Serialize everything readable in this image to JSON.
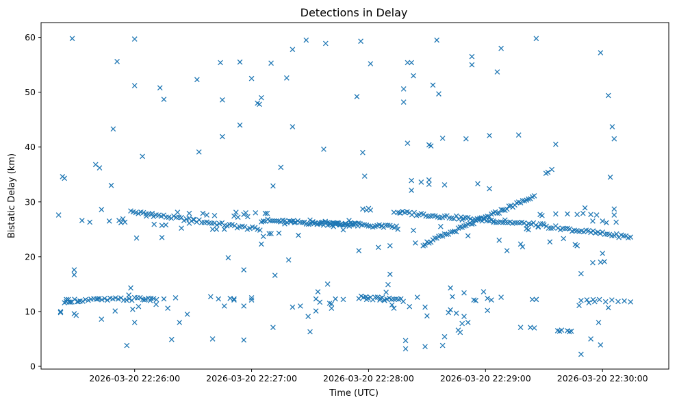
{
  "chart_data": {
    "type": "scatter",
    "title": "Detections in Delay",
    "xlabel": "Time (UTC)",
    "ylabel": "Bistatic Delay (km)",
    "marker": "x",
    "color": "#1f77b4",
    "grid": false,
    "xlim_seconds_from_start": [
      -48,
      274
    ],
    "ylim": [
      -0.5,
      62.7
    ],
    "x_tick_seconds": [
      0,
      60,
      120,
      180,
      240
    ],
    "x_tick_labels": [
      "2026-03-20 22:26:00",
      "2026-03-20 22:27:00",
      "2026-03-20 22:28:00",
      "2026-03-20 22:29:00",
      "2026-03-20 22:30:00"
    ],
    "y_ticks": [
      0,
      10,
      20,
      30,
      40,
      50,
      60
    ],
    "y_tick_labels": [
      "0",
      "10",
      "20",
      "30",
      "40",
      "50",
      "60"
    ],
    "x_start_time": "2026-03-20 22:26:00",
    "series": [
      {
        "name": "detections",
        "tracks": [
          {
            "t0": -2,
            "t1": 65,
            "y0": 28.2,
            "y1": 24.9,
            "step": 1.3,
            "jitter": 0.3
          },
          {
            "t0": 65,
            "t1": 135,
            "y0": 26.6,
            "y1": 25.4,
            "step": 1.1,
            "jitter": 0.3
          },
          {
            "t0": 135,
            "t1": 210,
            "y0": 28.1,
            "y1": 25.7,
            "step": 1.2,
            "jitter": 0.3
          },
          {
            "t0": 210,
            "t1": 255,
            "y0": 25.6,
            "y1": 23.5,
            "step": 1.2,
            "jitter": 0.3
          },
          {
            "t0": 148,
            "t1": 205,
            "y0": 22.2,
            "y1": 31.0,
            "step": 1.0,
            "jitter": 0.3
          },
          {
            "t0": -35,
            "t1": 12,
            "y0": 12.0,
            "y1": 12.4,
            "step": 1.4,
            "jitter": 0.3
          },
          {
            "t0": 115,
            "t1": 138,
            "y0": 12.6,
            "y1": 12.0,
            "step": 1.2,
            "jitter": 0.3
          },
          {
            "t0": 90,
            "t1": 115,
            "y0": 26.4,
            "y1": 25.8,
            "step": 1.3,
            "jitter": 0.3
          },
          {
            "t0": 232,
            "t1": 256,
            "y0": 12.3,
            "y1": 11.8,
            "step": 3.2,
            "jitter": 0.4
          }
        ],
        "points": [
          [
            -39,
            27.6
          ],
          [
            -38,
            10.0
          ],
          [
            -38,
            9.8
          ],
          [
            -37,
            34.6
          ],
          [
            -36,
            34.3
          ],
          [
            -36,
            11.6
          ],
          [
            -35,
            11.8
          ],
          [
            -34,
            12.2
          ],
          [
            -33,
            11.7
          ],
          [
            -32,
            59.8
          ],
          [
            -31,
            17.6
          ],
          [
            -31,
            16.7
          ],
          [
            -31,
            9.6
          ],
          [
            -30,
            9.3
          ],
          [
            -29,
            11.8
          ],
          [
            -28,
            11.9
          ],
          [
            -27,
            26.6
          ],
          [
            -23,
            26.3
          ],
          [
            -20,
            36.8
          ],
          [
            -19,
            12.3
          ],
          [
            -18,
            36.2
          ],
          [
            -17,
            28.6
          ],
          [
            -17,
            8.6
          ],
          [
            -13,
            26.5
          ],
          [
            -12,
            33.0
          ],
          [
            -11,
            43.3
          ],
          [
            -10,
            10.1
          ],
          [
            -9,
            55.6
          ],
          [
            -8,
            26.6
          ],
          [
            -7,
            26.2
          ],
          [
            -6,
            26.9
          ],
          [
            -5,
            26.3
          ],
          [
            -4,
            3.8
          ],
          [
            -3,
            13.0
          ],
          [
            -2,
            14.3
          ],
          [
            -1,
            10.4
          ],
          [
            0,
            8.0
          ],
          [
            0,
            51.2
          ],
          [
            0,
            59.7
          ],
          [
            1,
            23.4
          ],
          [
            2,
            10.9
          ],
          [
            4,
            38.3
          ],
          [
            5,
            12.1
          ],
          [
            6,
            27.4
          ],
          [
            8,
            12.0
          ],
          [
            9,
            27.9
          ],
          [
            10,
            25.9
          ],
          [
            11,
            11.3
          ],
          [
            13,
            50.8
          ],
          [
            14,
            23.5
          ],
          [
            14,
            25.7
          ],
          [
            15,
            48.7
          ],
          [
            15,
            12.3
          ],
          [
            16,
            25.8
          ],
          [
            17,
            10.6
          ],
          [
            19,
            4.9
          ],
          [
            21,
            12.5
          ],
          [
            22,
            28.1
          ],
          [
            23,
            8.0
          ],
          [
            24,
            25.2
          ],
          [
            27,
            9.5
          ],
          [
            28,
            27.9
          ],
          [
            28,
            26.1
          ],
          [
            30,
            26.8
          ],
          [
            32,
            52.3
          ],
          [
            33,
            39.1
          ],
          [
            35,
            27.9
          ],
          [
            37,
            27.6
          ],
          [
            39,
            12.7
          ],
          [
            40,
            5.0
          ],
          [
            40,
            25.0
          ],
          [
            41,
            27.5
          ],
          [
            42,
            25.0
          ],
          [
            43,
            12.3
          ],
          [
            44,
            55.4
          ],
          [
            45,
            48.6
          ],
          [
            45,
            41.9
          ],
          [
            46,
            11.0
          ],
          [
            46,
            25.0
          ],
          [
            48,
            19.8
          ],
          [
            49,
            12.4
          ],
          [
            51,
            12.3
          ],
          [
            51,
            12.1
          ],
          [
            51,
            27.4
          ],
          [
            52,
            28.1
          ],
          [
            53,
            27.2
          ],
          [
            54,
            44.0
          ],
          [
            54,
            55.5
          ],
          [
            56,
            17.6
          ],
          [
            56,
            4.8
          ],
          [
            56,
            11.0
          ],
          [
            56,
            27.7
          ],
          [
            57,
            28.0
          ],
          [
            58,
            27.3
          ],
          [
            60,
            52.5
          ],
          [
            60,
            12.5
          ],
          [
            60,
            12.1
          ],
          [
            62,
            28.0
          ],
          [
            63,
            48.0
          ],
          [
            64,
            47.8
          ],
          [
            65,
            49.0
          ],
          [
            65,
            22.3
          ],
          [
            66,
            23.7
          ],
          [
            66,
            26.5
          ],
          [
            67,
            27.9
          ],
          [
            68,
            27.9
          ],
          [
            69,
            24.2
          ],
          [
            70,
            24.2
          ],
          [
            70,
            55.3
          ],
          [
            71,
            7.1
          ],
          [
            71,
            32.9
          ],
          [
            72,
            16.6
          ],
          [
            74,
            24.3
          ],
          [
            75,
            36.3
          ],
          [
            77,
            26.0
          ],
          [
            78,
            52.6
          ],
          [
            79,
            19.4
          ],
          [
            80,
            26.4
          ],
          [
            81,
            57.8
          ],
          [
            81,
            43.7
          ],
          [
            81,
            10.8
          ],
          [
            82,
            26.2
          ],
          [
            84,
            23.9
          ],
          [
            85,
            11.0
          ],
          [
            87,
            26.3
          ],
          [
            88,
            59.5
          ],
          [
            89,
            9.1
          ],
          [
            90,
            6.3
          ],
          [
            92,
            26.0
          ],
          [
            93,
            10.1
          ],
          [
            93,
            12.3
          ],
          [
            94,
            13.6
          ],
          [
            95,
            11.7
          ],
          [
            96,
            26.1
          ],
          [
            97,
            39.6
          ],
          [
            98,
            58.9
          ],
          [
            99,
            15.0
          ],
          [
            100,
            26.2
          ],
          [
            100,
            11.5
          ],
          [
            101,
            11.4
          ],
          [
            101,
            10.6
          ],
          [
            102,
            25.5
          ],
          [
            103,
            12.3
          ],
          [
            103,
            26.1
          ],
          [
            104,
            26.2
          ],
          [
            105,
            25.8
          ],
          [
            107,
            12.2
          ],
          [
            107,
            24.9
          ],
          [
            108,
            26.0
          ],
          [
            110,
            26.6
          ],
          [
            113,
            26.1
          ],
          [
            114,
            49.2
          ],
          [
            115,
            21.1
          ],
          [
            116,
            59.3
          ],
          [
            117,
            39.0
          ],
          [
            117,
            28.7
          ],
          [
            118,
            34.7
          ],
          [
            119,
            28.5
          ],
          [
            119,
            12.2
          ],
          [
            120,
            28.8
          ],
          [
            121,
            28.5
          ],
          [
            121,
            55.2
          ],
          [
            125,
            21.7
          ],
          [
            126,
            12.4
          ],
          [
            127,
            25.6
          ],
          [
            128,
            12.1
          ],
          [
            129,
            13.5
          ],
          [
            130,
            14.9
          ],
          [
            131,
            16.8
          ],
          [
            131,
            22.0
          ],
          [
            132,
            11.2
          ],
          [
            133,
            10.6
          ],
          [
            133,
            28.1
          ],
          [
            135,
            25.0
          ],
          [
            136,
            28.0
          ],
          [
            138,
            50.6
          ],
          [
            138,
            48.2
          ],
          [
            139,
            4.7
          ],
          [
            139,
            3.2
          ],
          [
            140,
            55.4
          ],
          [
            140,
            40.7
          ],
          [
            141,
            10.9
          ],
          [
            142,
            55.4
          ],
          [
            142,
            33.9
          ],
          [
            142,
            32.1
          ],
          [
            143,
            53.0
          ],
          [
            143,
            24.8
          ],
          [
            144,
            22.5
          ],
          [
            145,
            12.6
          ],
          [
            147,
            33.6
          ],
          [
            149,
            3.6
          ],
          [
            149,
            10.8
          ],
          [
            150,
            9.2
          ],
          [
            151,
            34.0
          ],
          [
            151,
            33.2
          ],
          [
            151,
            40.4
          ],
          [
            152,
            40.2
          ],
          [
            153,
            51.3
          ],
          [
            155,
            59.5
          ],
          [
            156,
            49.7
          ],
          [
            157,
            25.5
          ],
          [
            158,
            41.6
          ],
          [
            158,
            3.8
          ],
          [
            159,
            33.1
          ],
          [
            159,
            5.4
          ],
          [
            161,
            9.8
          ],
          [
            162,
            10.3
          ],
          [
            162,
            14.3
          ],
          [
            163,
            12.7
          ],
          [
            165,
            9.7
          ],
          [
            166,
            6.6
          ],
          [
            167,
            6.2
          ],
          [
            168,
            26.7
          ],
          [
            168,
            7.8
          ],
          [
            169,
            13.4
          ],
          [
            169,
            9.1
          ],
          [
            170,
            41.5
          ],
          [
            171,
            8.0
          ],
          [
            171,
            23.8
          ],
          [
            173,
            55.0
          ],
          [
            173,
            56.5
          ],
          [
            174,
            12.1
          ],
          [
            175,
            12.0
          ],
          [
            176,
            33.3
          ],
          [
            179,
            13.6
          ],
          [
            181,
            12.4
          ],
          [
            181,
            10.2
          ],
          [
            182,
            32.4
          ],
          [
            182,
            42.1
          ],
          [
            183,
            12.1
          ],
          [
            184,
            26.5
          ],
          [
            186,
            53.7
          ],
          [
            187,
            23.0
          ],
          [
            188,
            58.0
          ],
          [
            188,
            12.6
          ],
          [
            190,
            26.7
          ],
          [
            191,
            21.1
          ],
          [
            197,
            42.2
          ],
          [
            198,
            7.1
          ],
          [
            198,
            22.3
          ],
          [
            199,
            21.8
          ],
          [
            201,
            25.1
          ],
          [
            202,
            24.9
          ],
          [
            203,
            7.1
          ],
          [
            204,
            12.2
          ],
          [
            205,
            7.0
          ],
          [
            206,
            12.2
          ],
          [
            206,
            59.8
          ],
          [
            206,
            12.2
          ],
          [
            207,
            25.4
          ],
          [
            208,
            27.7
          ],
          [
            209,
            27.5
          ],
          [
            211,
            35.2
          ],
          [
            212,
            35.4
          ],
          [
            213,
            22.7
          ],
          [
            214,
            35.9
          ],
          [
            216,
            40.5
          ],
          [
            216,
            27.8
          ],
          [
            217,
            6.5
          ],
          [
            218,
            6.4
          ],
          [
            219,
            6.6
          ],
          [
            220,
            23.3
          ],
          [
            222,
            27.8
          ],
          [
            222,
            6.5
          ],
          [
            223,
            6.3
          ],
          [
            224,
            6.4
          ],
          [
            226,
            22.2
          ],
          [
            227,
            22.0
          ],
          [
            227,
            27.7
          ],
          [
            228,
            11.1
          ],
          [
            229,
            12.0
          ],
          [
            229,
            16.9
          ],
          [
            229,
            2.2
          ],
          [
            230,
            27.9
          ],
          [
            231,
            28.9
          ],
          [
            233,
            11.6
          ],
          [
            234,
            5.0
          ],
          [
            234,
            27.7
          ],
          [
            235,
            18.9
          ],
          [
            235,
            26.5
          ],
          [
            236,
            11.8
          ],
          [
            237,
            27.6
          ],
          [
            238,
            8.0
          ],
          [
            239,
            57.2
          ],
          [
            239,
            19.0
          ],
          [
            239,
            3.9
          ],
          [
            240,
            20.6
          ],
          [
            240,
            26.5
          ],
          [
            241,
            19.1
          ],
          [
            242,
            26.2
          ],
          [
            243,
            49.4
          ],
          [
            243,
            10.7
          ],
          [
            244,
            34.5
          ],
          [
            245,
            43.7
          ],
          [
            246,
            41.5
          ],
          [
            246,
            28.7
          ],
          [
            246,
            27.6
          ],
          [
            247,
            26.3
          ]
        ]
      }
    ]
  }
}
